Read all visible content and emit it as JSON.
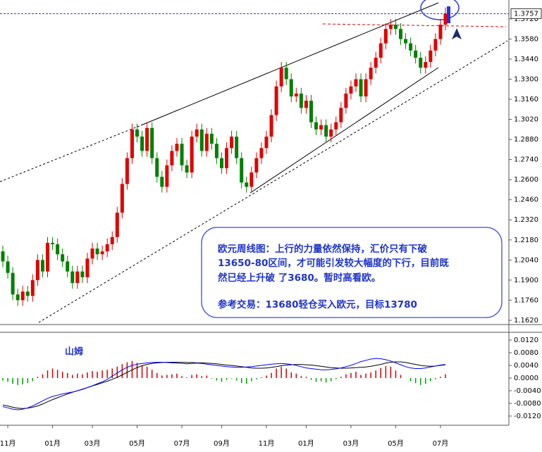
{
  "chart_data": [
    {
      "type": "candlestick",
      "categories": [
        null,
        "11月",
        null,
        null,
        null,
        null,
        null,
        null,
        null,
        null,
        "01月",
        null,
        null,
        null,
        null,
        null,
        null,
        null,
        "03月",
        null,
        null,
        null,
        null,
        null,
        null,
        null,
        null,
        "05月",
        null,
        null,
        null,
        null,
        null,
        null,
        null,
        null,
        "07月",
        null,
        null,
        null,
        null,
        null,
        null,
        null,
        "09月",
        null,
        null,
        null,
        null,
        null,
        null,
        null,
        null,
        "11月",
        null,
        null,
        null,
        null,
        null,
        null,
        null,
        "01月",
        null,
        null,
        null,
        null,
        null,
        null,
        null,
        null,
        "03月",
        null,
        null,
        null,
        null,
        null,
        null,
        null,
        null,
        "05月",
        null,
        null,
        null,
        null,
        null,
        null,
        null,
        null,
        "07月",
        null
      ],
      "open": [
        1.21,
        1.203,
        1.195,
        1.18,
        1.176,
        1.182,
        1.179,
        1.19,
        1.204,
        1.196,
        1.216,
        1.215,
        1.208,
        1.203,
        1.196,
        1.188,
        1.196,
        1.192,
        1.205,
        1.212,
        1.208,
        1.21,
        1.215,
        1.22,
        1.237,
        1.257,
        1.275,
        1.295,
        1.29,
        1.28,
        1.296,
        1.275,
        1.262,
        1.255,
        1.27,
        1.28,
        1.285,
        1.27,
        1.265,
        1.29,
        1.295,
        1.28,
        1.292,
        1.285,
        1.275,
        1.268,
        1.282,
        1.29,
        1.275,
        1.258,
        1.255,
        1.265,
        1.275,
        1.282,
        1.29,
        1.305,
        1.325,
        1.338,
        1.33,
        1.318,
        1.32,
        1.31,
        1.315,
        1.3,
        1.295,
        1.298,
        1.29,
        1.295,
        1.3,
        1.31,
        1.32,
        1.325,
        1.33,
        1.318,
        1.33,
        1.338,
        1.345,
        1.355,
        1.365,
        1.368,
        1.365,
        1.358,
        1.355,
        1.35,
        1.345,
        1.338,
        1.342,
        1.35,
        1.358,
        1.368
      ],
      "high": [
        1.214,
        1.207,
        1.199,
        1.184,
        1.186,
        1.186,
        1.194,
        1.208,
        1.208,
        1.22,
        1.22,
        1.219,
        1.212,
        1.207,
        1.2,
        1.2,
        1.2,
        1.209,
        1.216,
        1.216,
        1.214,
        1.219,
        1.224,
        1.241,
        1.261,
        1.279,
        1.299,
        1.299,
        1.294,
        1.3,
        1.3,
        1.279,
        1.266,
        1.274,
        1.284,
        1.289,
        1.289,
        1.274,
        1.294,
        1.299,
        1.299,
        1.296,
        1.296,
        1.289,
        1.279,
        1.286,
        1.294,
        1.294,
        1.279,
        1.262,
        1.269,
        1.279,
        1.286,
        1.294,
        1.309,
        1.329,
        1.342,
        1.342,
        1.334,
        1.324,
        1.324,
        1.319,
        1.319,
        1.304,
        1.302,
        1.302,
        1.299,
        1.304,
        1.314,
        1.324,
        1.329,
        1.334,
        1.334,
        1.334,
        1.342,
        1.349,
        1.359,
        1.369,
        1.372,
        1.372,
        1.369,
        1.362,
        1.359,
        1.354,
        1.349,
        1.346,
        1.354,
        1.362,
        1.372,
        1.38
      ],
      "low": [
        1.199,
        1.191,
        1.176,
        1.172,
        1.172,
        1.175,
        1.175,
        1.186,
        1.192,
        1.192,
        1.211,
        1.204,
        1.199,
        1.192,
        1.184,
        1.184,
        1.188,
        1.188,
        1.201,
        1.204,
        1.204,
        1.206,
        1.211,
        1.216,
        1.233,
        1.253,
        1.271,
        1.286,
        1.276,
        1.276,
        1.271,
        1.258,
        1.251,
        1.251,
        1.266,
        1.276,
        1.266,
        1.261,
        1.261,
        1.286,
        1.276,
        1.276,
        1.281,
        1.271,
        1.264,
        1.264,
        1.278,
        1.271,
        1.254,
        1.251,
        1.251,
        1.261,
        1.271,
        1.278,
        1.286,
        1.301,
        1.321,
        1.326,
        1.314,
        1.314,
        1.306,
        1.306,
        1.296,
        1.291,
        1.291,
        1.286,
        1.286,
        1.291,
        1.296,
        1.306,
        1.316,
        1.321,
        1.314,
        1.314,
        1.326,
        1.334,
        1.341,
        1.351,
        1.361,
        1.361,
        1.354,
        1.351,
        1.346,
        1.341,
        1.334,
        1.334,
        1.338,
        1.346,
        1.354,
        1.364
      ],
      "close": [
        1.203,
        1.195,
        1.18,
        1.176,
        1.182,
        1.179,
        1.19,
        1.204,
        1.196,
        1.216,
        1.215,
        1.208,
        1.203,
        1.196,
        1.188,
        1.196,
        1.192,
        1.205,
        1.212,
        1.208,
        1.21,
        1.215,
        1.22,
        1.237,
        1.257,
        1.275,
        1.295,
        1.29,
        1.28,
        1.296,
        1.275,
        1.262,
        1.255,
        1.27,
        1.28,
        1.285,
        1.27,
        1.265,
        1.29,
        1.295,
        1.28,
        1.292,
        1.285,
        1.275,
        1.268,
        1.282,
        1.29,
        1.275,
        1.258,
        1.255,
        1.265,
        1.275,
        1.282,
        1.29,
        1.305,
        1.325,
        1.338,
        1.33,
        1.318,
        1.32,
        1.31,
        1.315,
        1.3,
        1.295,
        1.298,
        1.29,
        1.295,
        1.3,
        1.31,
        1.32,
        1.325,
        1.33,
        1.318,
        1.33,
        1.338,
        1.345,
        1.355,
        1.365,
        1.368,
        1.365,
        1.358,
        1.355,
        1.35,
        1.345,
        1.338,
        1.342,
        1.35,
        1.358,
        1.368,
        1.3757
      ],
      "up_color": "#e00000",
      "down_color": "#008000",
      "ylim": [
        1.1595,
        1.3852
      ],
      "yticks": [
        {
          "value": 1.372,
          "label": "1.3720"
        },
        {
          "value": 1.358,
          "label": "1.3580"
        },
        {
          "value": 1.344,
          "label": "1.3440"
        },
        {
          "value": 1.33,
          "label": "1.3300"
        },
        {
          "value": 1.316,
          "label": "1.3160"
        },
        {
          "value": 1.302,
          "label": "1.3020"
        },
        {
          "value": 1.288,
          "label": "1.2880"
        },
        {
          "value": 1.274,
          "label": "1.2740"
        },
        {
          "value": 1.26,
          "label": "1.2600"
        },
        {
          "value": 1.246,
          "label": "1.2460"
        },
        {
          "value": 1.232,
          "label": "1.2320"
        },
        {
          "value": 1.218,
          "label": "1.2180"
        },
        {
          "value": 1.204,
          "label": "1.2040"
        },
        {
          "value": 1.19,
          "label": "1.1900"
        },
        {
          "value": 1.176,
          "label": "1.1760"
        },
        {
          "value": 1.162,
          "label": "1.1620"
        }
      ],
      "last_price": {
        "value": 1.3757,
        "label": "1.3757"
      },
      "annotations": [
        "欧元周线图：上行的力量依然保持，汇价只有下破",
        "13650-80区间，才可能引发较大幅度的下行，目前既",
        "然已经上升破  了3680。暂时高看欧。",
        "参考交易：13680轻仓买入欧元，目标13780"
      ]
    },
    {
      "type": "macd",
      "label": "山姆",
      "ylim": [
        -0.0149,
        0.014
      ],
      "yticks": [
        {
          "value": 0.012,
          "label": "0.0120"
        },
        {
          "value": 0.008,
          "label": "0.0080"
        },
        {
          "value": 0.004,
          "label": "0.0040"
        },
        {
          "value": 0,
          "label": "0.0000"
        },
        {
          "value": -0.004,
          "label": "-0.0040"
        },
        {
          "value": -0.008,
          "label": "-0.0080"
        },
        {
          "value": -0.012,
          "label": "-0.0120"
        }
      ],
      "histogram": {
        "up_color": "#d00000",
        "down_color": "#00a000",
        "values": [
          -0.0008,
          -0.0012,
          -0.0018,
          -0.0022,
          -0.002,
          -0.0016,
          -0.001,
          0.0004,
          0.0012,
          0.0024,
          0.003,
          0.0026,
          0.002,
          0.0016,
          0.001,
          0.0014,
          0.0012,
          0.0018,
          0.0022,
          0.002,
          0.0024,
          0.0026,
          0.003,
          0.0036,
          0.0044,
          0.005,
          0.0054,
          0.0048,
          0.004,
          0.0036,
          0.0026,
          0.0016,
          0.0008,
          0.001,
          0.0012,
          0.0014,
          0.0006,
          0.0002,
          0.001,
          0.0012,
          0.0006,
          0.0008,
          -0.0002,
          -0.0008,
          -0.0012,
          -0.0006,
          -0.0002,
          -0.0008,
          -0.0016,
          -0.0018,
          -0.001,
          -0.0004,
          0.0002,
          0.0008,
          0.0016,
          0.003,
          0.0036,
          0.003,
          0.0018,
          0.0014,
          0.0006,
          0.0004,
          -0.0006,
          -0.0012,
          -0.001,
          -0.0014,
          -0.001,
          -0.0004,
          0.0004,
          0.0012,
          0.0016,
          0.002,
          0.001,
          0.0014,
          0.0018,
          0.0024,
          0.0032,
          0.0038,
          0.0036,
          0.0024,
          0.001,
          0.0,
          -0.001,
          -0.0016,
          -0.0022,
          -0.0018,
          -0.001,
          -0.0004,
          0.0004,
          0.0012
        ]
      },
      "lines": [
        {
          "color": "#000000",
          "values": [
            -0.0085,
            -0.0088,
            -0.0092,
            -0.0095,
            -0.0096,
            -0.0095,
            -0.0092,
            -0.0088,
            -0.0082,
            -0.0075,
            -0.0068,
            -0.0062,
            -0.0056,
            -0.005,
            -0.0045,
            -0.004,
            -0.0035,
            -0.003,
            -0.0025,
            -0.002,
            -0.0015,
            -0.001,
            -0.0004,
            0.0002,
            0.001,
            0.0018,
            0.0026,
            0.0033,
            0.0039,
            0.0043,
            0.0046,
            0.0048,
            0.0049,
            0.005,
            0.005,
            0.005,
            0.005,
            0.0049,
            0.0049,
            0.0048,
            0.0048,
            0.0047,
            0.0046,
            0.0045,
            0.0043,
            0.0041,
            0.004,
            0.0038,
            0.0036,
            0.0034,
            0.0032,
            0.0031,
            0.0031,
            0.0032,
            0.0034,
            0.0036,
            0.0039,
            0.0041,
            0.0042,
            0.0043,
            0.0043,
            0.0042,
            0.0041,
            0.0039,
            0.0037,
            0.0035,
            0.0033,
            0.0032,
            0.0031,
            0.0031,
            0.0032,
            0.0033,
            0.0034,
            0.0035,
            0.0037,
            0.004,
            0.0043,
            0.0047,
            0.005,
            0.0051,
            0.0051,
            0.0049,
            0.0046,
            0.0043,
            0.004,
            0.0038,
            0.0037,
            0.0038,
            0.004,
            0.0042
          ]
        },
        {
          "color": "#0000ff",
          "values": [
            -0.009,
            -0.0094,
            -0.0098,
            -0.01,
            -0.0098,
            -0.0094,
            -0.0088,
            -0.008,
            -0.0072,
            -0.0064,
            -0.0058,
            -0.0054,
            -0.005,
            -0.0047,
            -0.0044,
            -0.004,
            -0.0036,
            -0.003,
            -0.0024,
            -0.0018,
            -0.0012,
            -0.0004,
            0.0006,
            0.0016,
            0.0026,
            0.0034,
            0.004,
            0.0044,
            0.0046,
            0.0048,
            0.0049,
            0.005,
            0.005,
            0.0049,
            0.0048,
            0.0047,
            0.0046,
            0.0045,
            0.0046,
            0.0047,
            0.0046,
            0.0044,
            0.0042,
            0.004,
            0.0038,
            0.0036,
            0.0035,
            0.0034,
            0.0034,
            0.0035,
            0.0036,
            0.0038,
            0.004,
            0.0042,
            0.0044,
            0.0045,
            0.0046,
            0.0045,
            0.0043,
            0.004,
            0.0036,
            0.0032,
            0.003,
            0.0028,
            0.0026,
            0.0026,
            0.0027,
            0.0029,
            0.0032,
            0.0036,
            0.004,
            0.0046,
            0.0052,
            0.0056,
            0.006,
            0.0062,
            0.0061,
            0.0058,
            0.0054,
            0.0048,
            0.0042,
            0.0036,
            0.0032,
            0.003,
            0.003,
            0.0032,
            0.0035,
            0.0038,
            0.0041,
            0.0043
          ]
        }
      ]
    }
  ]
}
